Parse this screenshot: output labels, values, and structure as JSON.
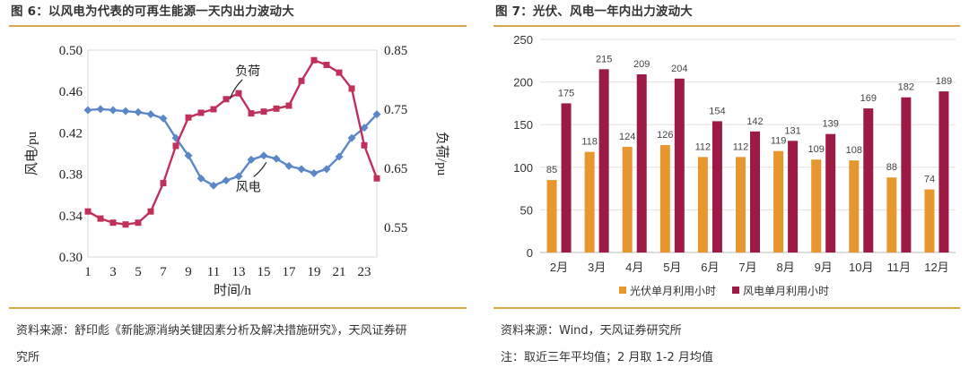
{
  "left": {
    "figure_title": "图 6：以风电为代表的可再生能源一天内出力波动大",
    "source_line1": "资料来源：舒印彪《新能源消纳关键因素分析及解决措施研究》，天风证券研",
    "source_line2": "究所"
  },
  "right": {
    "figure_title": "图 7：光伏、风电一年内出力波动大",
    "source_line1": "资料来源：Wind，天风证券研究所",
    "note": "注：取近三年平均值；2 月取 1-2 月均值"
  },
  "chart_data": [
    {
      "type": "line",
      "title": "",
      "xlabel": "时间/h",
      "ylabel_left": "风电/pu",
      "ylabel_right": "负荷/pu",
      "x_ticks": [
        "1",
        "3",
        "5",
        "7",
        "9",
        "11",
        "13",
        "15",
        "17",
        "19",
        "21",
        "23"
      ],
      "y_left_ticks": [
        "0.50",
        "0.46",
        "0.42",
        "0.38",
        "0.34",
        "0.30"
      ],
      "y_right_ticks": [
        "0.85",
        "0.75",
        "0.65",
        "0.55"
      ],
      "ylim_left": [
        0.3,
        0.5
      ],
      "ylim_right": [
        0.5,
        0.85
      ],
      "xlim": [
        1,
        24
      ],
      "grid": false,
      "colors": {
        "wind": "#5b87c9",
        "load": "#c0305a"
      },
      "series": [
        {
          "name": "风电",
          "axis": "left",
          "x": [
            1,
            2,
            3,
            4,
            5,
            6,
            7,
            8,
            9,
            10,
            11,
            12,
            13,
            14,
            15,
            16,
            17,
            18,
            19,
            20,
            21,
            22,
            23,
            24
          ],
          "values": [
            0.442,
            0.443,
            0.442,
            0.441,
            0.44,
            0.438,
            0.434,
            0.415,
            0.398,
            0.376,
            0.369,
            0.374,
            0.378,
            0.394,
            0.398,
            0.395,
            0.388,
            0.385,
            0.381,
            0.385,
            0.397,
            0.415,
            0.425,
            0.438
          ]
        },
        {
          "name": "负荷",
          "axis": "right",
          "x": [
            1,
            2,
            3,
            4,
            5,
            6,
            7,
            8,
            9,
            10,
            11,
            12,
            13,
            14,
            15,
            16,
            17,
            18,
            19,
            20,
            21,
            22,
            23,
            24
          ],
          "values": [
            0.577,
            0.565,
            0.558,
            0.555,
            0.558,
            0.577,
            0.625,
            0.688,
            0.736,
            0.744,
            0.75,
            0.767,
            0.777,
            0.743,
            0.746,
            0.751,
            0.756,
            0.798,
            0.833,
            0.825,
            0.812,
            0.785,
            0.689,
            0.633
          ]
        }
      ]
    },
    {
      "type": "bar",
      "title": "",
      "categories": [
        "2月",
        "3月",
        "4月",
        "5月",
        "6月",
        "7月",
        "8月",
        "9月",
        "10月",
        "11月",
        "12月"
      ],
      "ylim": [
        0,
        250
      ],
      "y_ticks": [
        "250",
        "200",
        "150",
        "100",
        "50",
        "0"
      ],
      "grid": true,
      "legend_position": "bottom",
      "colors": {
        "solar": "#e8972e",
        "wind": "#9c1a44"
      },
      "series": [
        {
          "name": "光伏单月利用小时",
          "values": [
            85,
            118,
            124,
            126,
            112,
            112,
            119,
            109,
            108,
            88,
            74
          ],
          "labels": [
            "85",
            "118",
            "124",
            "126",
            "112",
            "112",
            "119",
            "109",
            "108",
            "88",
            "74"
          ]
        },
        {
          "name": "风电单月利用小时",
          "values": [
            175,
            215,
            209,
            204,
            154,
            142,
            131,
            139,
            169,
            182,
            189
          ],
          "labels": [
            "175",
            "215",
            "209",
            "204",
            "154",
            "142",
            "131",
            "139",
            "169",
            "182",
            "189"
          ]
        }
      ]
    }
  ]
}
